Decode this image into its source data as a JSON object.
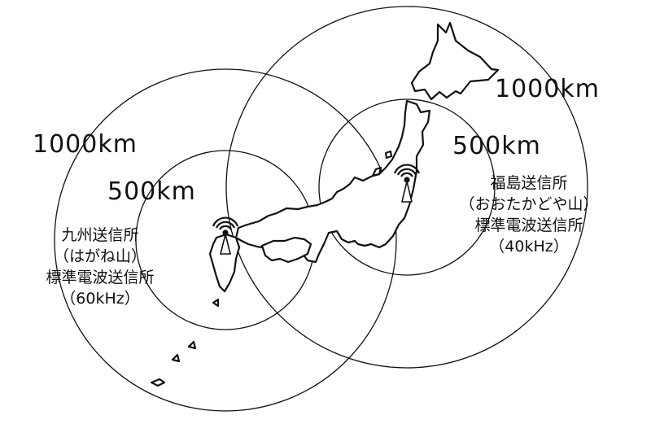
{
  "colors": {
    "line": "#111111",
    "background": "#ffffff"
  },
  "stations": [
    {
      "ring_outer_label": "1000km",
      "ring_inner_label": "500km",
      "lines": [
        "九州送信所",
        "（はがね山）",
        "標準電波送信所",
        "（60kHz）"
      ],
      "icon": "radio-tower-icon"
    },
    {
      "ring_outer_label": "1000km",
      "ring_inner_label": "500km",
      "lines": [
        "福島送信所",
        "（おおたかどや山）",
        "標準電波送信所",
        "（40kHz）"
      ],
      "icon": "radio-tower-icon"
    }
  ]
}
